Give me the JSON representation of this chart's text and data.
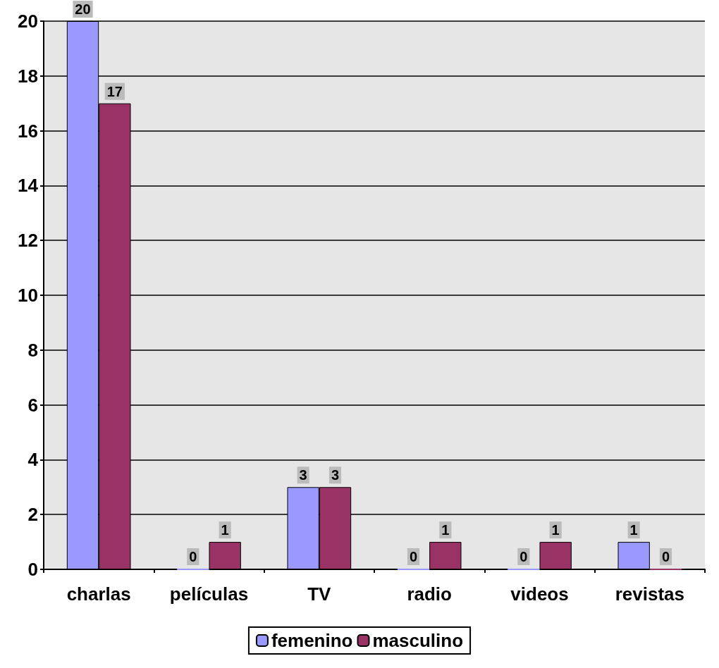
{
  "chart_data": {
    "type": "bar",
    "categories": [
      "charlas",
      "películas",
      "TV",
      "radio",
      "videos",
      "revistas"
    ],
    "series": [
      {
        "name": "femenino",
        "color": "#9999ff",
        "values": [
          20,
          0,
          3,
          0,
          0,
          1
        ]
      },
      {
        "name": "masculino",
        "color": "#993366",
        "values": [
          17,
          1,
          3,
          1,
          1,
          0
        ]
      }
    ],
    "ylim": [
      0,
      20
    ],
    "yticks": [
      0,
      2,
      4,
      6,
      8,
      10,
      12,
      14,
      16,
      18,
      20
    ],
    "grid": "y",
    "legend": "bottom",
    "data_labels": true
  }
}
